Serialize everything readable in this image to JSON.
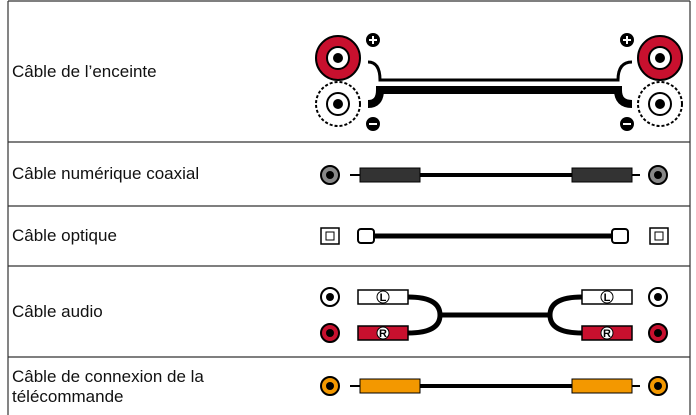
{
  "table": {
    "rows": [
      {
        "label": "Câble de l’enceinte"
      },
      {
        "label": "Câble numérique coaxial"
      },
      {
        "label": "Câble optique"
      },
      {
        "label": "Câble audio",
        "left_channel": "L",
        "right_channel": "R"
      },
      {
        "label": "Câble de connexion de la télécommande"
      }
    ]
  }
}
